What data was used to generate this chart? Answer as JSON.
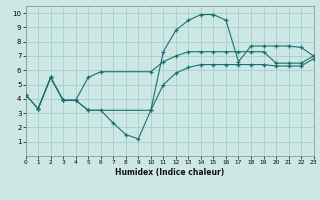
{
  "bg_color": "#cce8e5",
  "grid_color": "#aacccc",
  "line_color": "#1a7070",
  "xlim": [
    0,
    23
  ],
  "ylim": [
    0,
    10.5
  ],
  "xtick_vals": [
    0,
    1,
    2,
    3,
    4,
    5,
    6,
    7,
    8,
    9,
    10,
    11,
    12,
    13,
    14,
    15,
    16,
    17,
    18,
    19,
    20,
    21,
    22,
    23
  ],
  "ytick_vals": [
    1,
    2,
    3,
    4,
    5,
    6,
    7,
    8,
    9,
    10
  ],
  "xlabel": "Humidex (Indice chaleur)",
  "curve1_x": [
    0,
    1,
    2,
    3,
    4,
    5,
    6,
    7,
    8,
    9,
    10,
    11,
    12,
    13,
    14,
    15,
    16,
    17,
    18,
    19,
    20,
    21,
    22,
    23
  ],
  "curve1_y": [
    4.3,
    3.3,
    5.5,
    3.9,
    3.9,
    3.2,
    3.2,
    2.3,
    1.5,
    1.2,
    3.2,
    7.3,
    8.8,
    9.5,
    9.9,
    9.9,
    9.5,
    6.6,
    7.7,
    7.7,
    7.7,
    7.7,
    7.6,
    7.0
  ],
  "curve2_x": [
    0,
    1,
    2,
    3,
    4,
    5,
    6,
    10,
    11,
    12,
    13,
    14,
    15,
    16,
    17,
    18,
    19,
    20,
    21,
    22,
    23
  ],
  "curve2_y": [
    4.3,
    3.3,
    5.5,
    3.9,
    3.9,
    5.5,
    5.9,
    5.9,
    6.6,
    7.0,
    7.3,
    7.3,
    7.3,
    7.3,
    7.3,
    7.3,
    7.3,
    6.5,
    6.5,
    6.5,
    7.0
  ],
  "curve3_x": [
    1,
    2,
    3,
    4,
    5,
    10,
    11,
    12,
    13,
    14,
    15,
    16,
    17,
    18,
    19,
    20,
    21,
    22,
    23
  ],
  "curve3_y": [
    3.3,
    5.5,
    3.9,
    3.9,
    3.2,
    3.2,
    5.0,
    5.8,
    6.2,
    6.4,
    6.4,
    6.4,
    6.4,
    6.4,
    6.4,
    6.3,
    6.3,
    6.3,
    6.8
  ]
}
